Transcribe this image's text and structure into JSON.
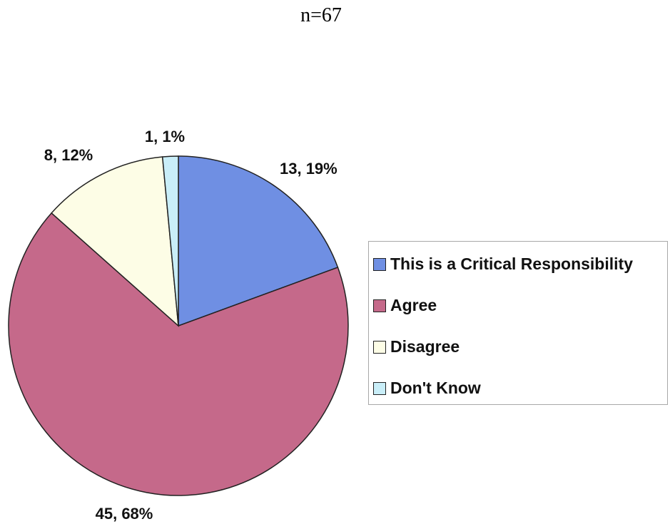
{
  "title": "n=67",
  "chart_data": {
    "type": "pie",
    "title": "n=67",
    "slices": [
      {
        "label": "This is a Critical Responsibility",
        "count": 13,
        "percent": 19,
        "data_label": "13, 19%",
        "color": "#6f8fe3"
      },
      {
        "label": "Agree",
        "count": 45,
        "percent": 68,
        "data_label": "45, 68%",
        "color": "#c5698a"
      },
      {
        "label": "Disagree",
        "count": 8,
        "percent": 12,
        "data_label": "8, 12%",
        "color": "#fdfde6"
      },
      {
        "label": "Don't Know",
        "count": 1,
        "percent": 1,
        "data_label": "1, 1%",
        "color": "#c9eef8"
      }
    ],
    "legend_position": "right"
  }
}
